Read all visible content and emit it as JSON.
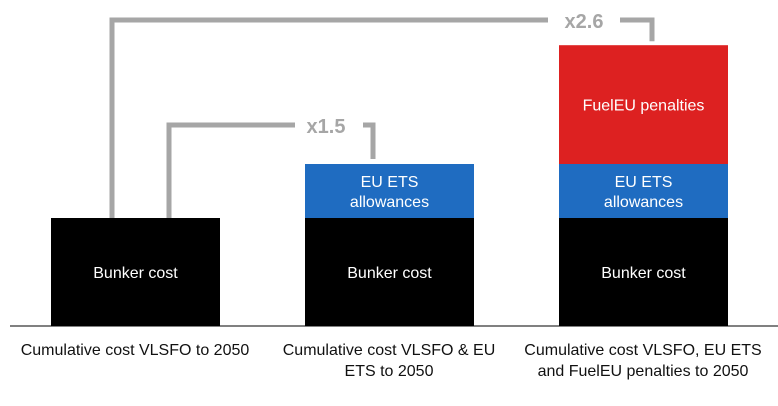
{
  "chart_data": {
    "type": "bar",
    "stacked": true,
    "categories": [
      "Cumulative cost VLSFO to 2050",
      "Cumulative cost VLSFO & EU ETS to 2050",
      "Cumulative cost VLSFO, EU ETS and FuelEU penalties to 2050"
    ],
    "series": [
      {
        "name": "Bunker cost",
        "color": "#000000",
        "label_color": "#ffffff",
        "values": [
          1.0,
          1.0,
          1.0
        ]
      },
      {
        "name": "EU ETS allowances",
        "color": "#1f6cc1",
        "label_color": "#ffffff",
        "values": [
          0,
          0.5,
          0.5
        ]
      },
      {
        "name": "FuelEU penalties",
        "color": "#dd2121",
        "label_color": "#ffffff",
        "values": [
          0,
          0,
          1.1
        ]
      }
    ],
    "segment_labels": [
      [
        "Bunker cost"
      ],
      [
        "Bunker cost",
        "EU ETS",
        "allowances"
      ],
      [
        "Bunker cost",
        "EU ETS",
        "allowances",
        "FuelEU penalties"
      ]
    ],
    "annotations": [
      {
        "from": 0,
        "to": 1,
        "text": "x1.5"
      },
      {
        "from": 0,
        "to": 2,
        "text": "x2.6"
      }
    ],
    "bracket_color": "#a6a6a6",
    "annotation_color": "#a6a6a6",
    "ylim": [
      0,
      2.6
    ],
    "grid": false,
    "legend": "none"
  }
}
